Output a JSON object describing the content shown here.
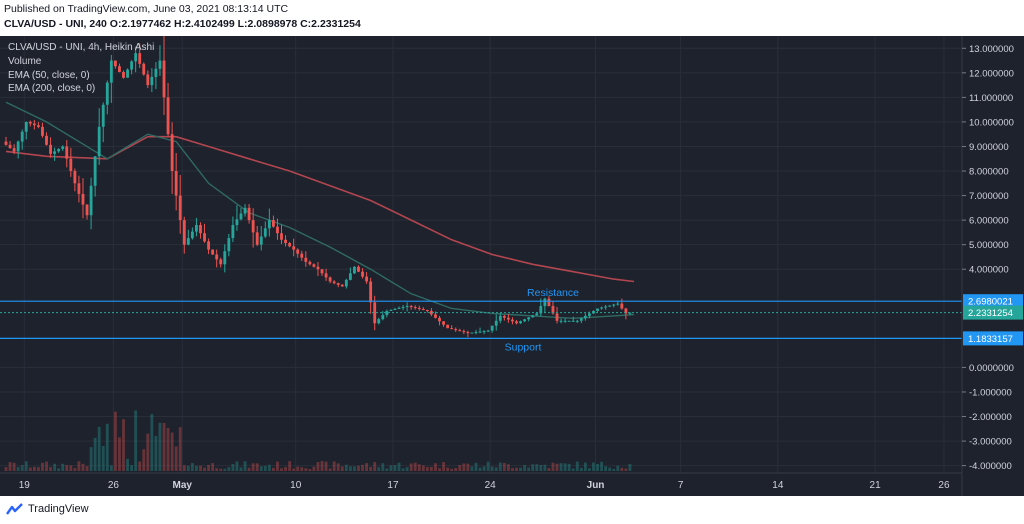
{
  "header": {
    "published": "Published on TradingView.com, June 03, 2021 08:13:14 UTC",
    "ohlc": "CLVA/USD - UNI, 240  O:2.1977462  H:2.4102499  L:2.0898978  C:2.2331254"
  },
  "legend": {
    "symbol": "CLVA/USD - UNI, 4h, Heikin Ashi",
    "volume": "Volume",
    "ema50": "EMA (50, close, 0)",
    "ema200": "EMA (200, close, 0)"
  },
  "footer": {
    "brand": "TradingView"
  },
  "colors": {
    "background": "#1e222d",
    "grid": "#2a2e39",
    "up": "#26a69a",
    "down": "#ef5350",
    "ema50": "#2f6a63",
    "ema200": "#b2464f",
    "level_line": "#2196f3",
    "axis_text": "#d1d4dc",
    "current_price": "#26a69a"
  },
  "chart_data": {
    "type": "candlestick",
    "title": "CLVA/USD - UNI, 4h, Heikin Ashi",
    "x_ticks": [
      "19",
      "26",
      "May",
      "10",
      "17",
      "24",
      "Jun",
      "7",
      "14",
      "21",
      "26"
    ],
    "y_ticks": [
      "13.000000",
      "12.000000",
      "11.000000",
      "10.000000",
      "9.000000",
      "8.000000",
      "7.000000",
      "6.000000",
      "5.000000",
      "4.000000",
      "0.0000000",
      "-1.000000",
      "-2.000000",
      "-3.000000",
      "-4.000000"
    ],
    "ylim": [
      -4.3,
      13.5
    ],
    "price_labels": [
      {
        "label": "2.6980021",
        "value": 2.6980021,
        "kind": "level"
      },
      {
        "label": "2.2331254",
        "value": 2.2331254,
        "kind": "current"
      },
      {
        "label": "1.1833157",
        "value": 1.1833157,
        "kind": "level"
      }
    ],
    "annotations": [
      {
        "text": "Resistance",
        "value": 2.6980021
      },
      {
        "text": "Support",
        "value": 1.1833157
      }
    ],
    "price_path": [
      [
        0,
        9.2
      ],
      [
        3,
        8.8
      ],
      [
        6,
        10.0
      ],
      [
        9,
        9.8
      ],
      [
        12,
        8.7
      ],
      [
        15,
        9.0
      ],
      [
        18,
        7.5
      ],
      [
        21,
        6.2
      ],
      [
        24,
        9.8
      ],
      [
        27,
        12.5
      ],
      [
        30,
        11.8
      ],
      [
        33,
        12.8
      ],
      [
        36,
        11.5
      ],
      [
        39,
        12.5
      ],
      [
        42,
        8.0
      ],
      [
        45,
        5.0
      ],
      [
        48,
        5.8
      ],
      [
        51,
        4.8
      ],
      [
        54,
        4.2
      ],
      [
        57,
        5.8
      ],
      [
        60,
        6.5
      ],
      [
        63,
        5.0
      ],
      [
        66,
        6.0
      ],
      [
        69,
        5.2
      ],
      [
        72,
        4.8
      ],
      [
        75,
        4.3
      ],
      [
        78,
        4.0
      ],
      [
        81,
        3.5
      ],
      [
        84,
        3.3
      ],
      [
        87,
        4.1
      ],
      [
        90,
        3.5
      ],
      [
        92,
        1.8
      ],
      [
        95,
        2.3
      ],
      [
        100,
        2.5
      ],
      [
        105,
        2.3
      ],
      [
        110,
        1.6
      ],
      [
        115,
        1.4
      ],
      [
        120,
        1.5
      ],
      [
        123,
        2.1
      ],
      [
        127,
        1.8
      ],
      [
        132,
        2.2
      ],
      [
        134,
        2.8
      ],
      [
        137,
        1.9
      ],
      [
        142,
        1.9
      ],
      [
        147,
        2.4
      ],
      [
        152,
        2.6
      ],
      [
        154,
        2.2
      ],
      [
        155,
        2.23
      ]
    ],
    "ema50_path": [
      [
        0,
        10.8
      ],
      [
        10,
        10.0
      ],
      [
        25,
        8.5
      ],
      [
        35,
        9.5
      ],
      [
        42,
        9.2
      ],
      [
        50,
        7.5
      ],
      [
        60,
        6.3
      ],
      [
        70,
        5.7
      ],
      [
        80,
        4.9
      ],
      [
        90,
        4.0
      ],
      [
        100,
        3.0
      ],
      [
        110,
        2.4
      ],
      [
        120,
        2.2
      ],
      [
        130,
        2.1
      ],
      [
        140,
        2.0
      ],
      [
        150,
        2.1
      ],
      [
        155,
        2.15
      ]
    ],
    "ema200_path": [
      [
        0,
        8.8
      ],
      [
        10,
        8.6
      ],
      [
        25,
        8.5
      ],
      [
        35,
        9.4
      ],
      [
        42,
        9.4
      ],
      [
        50,
        9.0
      ],
      [
        60,
        8.5
      ],
      [
        70,
        8.0
      ],
      [
        80,
        7.4
      ],
      [
        90,
        6.8
      ],
      [
        100,
        6.0
      ],
      [
        110,
        5.2
      ],
      [
        120,
        4.6
      ],
      [
        130,
        4.2
      ],
      [
        140,
        3.9
      ],
      [
        150,
        3.6
      ],
      [
        155,
        3.5
      ]
    ]
  }
}
